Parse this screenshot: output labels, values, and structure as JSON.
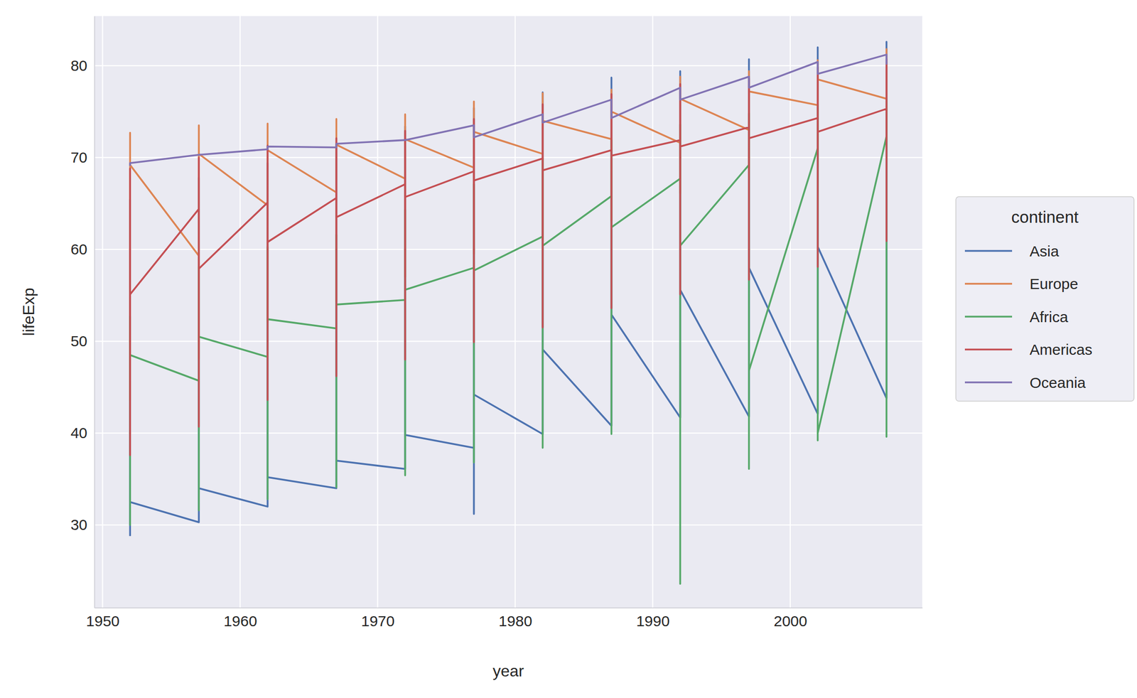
{
  "chart_data": {
    "type": "line",
    "x_label": "year",
    "y_label": "lifeExp",
    "legend_title": "continent",
    "legend": "right",
    "grid": true,
    "x": [
      1952,
      1952,
      1952,
      1952,
      1957,
      1957,
      1957,
      1957,
      1962,
      1962,
      1962,
      1962,
      1967,
      1967,
      1967,
      1967,
      1972,
      1972,
      1972,
      1972,
      1977,
      1977,
      1977,
      1977,
      1982,
      1982,
      1982,
      1982,
      1987,
      1987,
      1987,
      1987,
      1992,
      1992,
      1992,
      1992,
      1997,
      1997,
      1997,
      1997,
      2002,
      2002,
      2002,
      2002,
      2007,
      2007,
      2007,
      2007
    ],
    "xlim": [
      1949.4,
      2009.6
    ],
    "xticks": [
      1950,
      1960,
      1970,
      1980,
      1990,
      2000
    ],
    "ylim": [
      21,
      85.4
    ],
    "yticks": [
      30,
      40,
      50,
      60,
      70,
      80
    ],
    "series": [
      {
        "name": "Asia",
        "color": "#4c72b0",
        "values": [
          28.8,
          28.8,
          65.4,
          32.5,
          30.3,
          30.3,
          67.8,
          34.0,
          32.0,
          32.0,
          69.4,
          35.2,
          34.0,
          34.0,
          71.4,
          37.0,
          36.1,
          36.1,
          73.4,
          39.8,
          38.4,
          31.2,
          75.4,
          44.2,
          39.9,
          39.9,
          77.1,
          49.1,
          40.8,
          40.8,
          78.7,
          52.9,
          41.7,
          41.7,
          79.4,
          55.6,
          41.8,
          41.8,
          80.7,
          58.0,
          42.1,
          42.1,
          82.0,
          60.3,
          43.8,
          43.8,
          82.6,
          62.7
        ]
      },
      {
        "name": "Europe",
        "color": "#dd8452",
        "values": [
          55.2,
          43.6,
          72.7,
          69.2,
          59.3,
          48.1,
          73.5,
          70.4,
          64.8,
          52.1,
          73.7,
          70.8,
          66.2,
          54.3,
          74.2,
          71.4,
          67.7,
          57.0,
          74.7,
          72.0,
          68.9,
          59.5,
          76.1,
          72.8,
          70.4,
          61.0,
          77.0,
          74.0,
          72.0,
          63.1,
          77.4,
          75.0,
          71.6,
          66.1,
          78.8,
          76.4,
          73.0,
          68.8,
          79.4,
          77.2,
          75.7,
          70.8,
          80.6,
          78.5,
          76.4,
          71.8,
          81.8,
          79.4
        ]
      },
      {
        "name": "Africa",
        "color": "#55a868",
        "values": [
          43.1,
          30.0,
          52.7,
          48.5,
          45.7,
          31.6,
          58.1,
          50.5,
          48.3,
          32.8,
          60.3,
          52.4,
          51.4,
          34.1,
          61.6,
          54.0,
          54.5,
          35.4,
          64.3,
          55.6,
          58.0,
          36.8,
          67.1,
          57.7,
          61.4,
          38.4,
          69.9,
          60.4,
          65.8,
          39.9,
          71.9,
          62.4,
          67.7,
          23.6,
          73.6,
          60.4,
          69.2,
          36.1,
          74.8,
          46.8,
          71.0,
          39.2,
          75.7,
          40.0,
          72.3,
          39.6,
          76.4,
          43.5
        ]
      },
      {
        "name": "Americas",
        "color": "#c44e52",
        "values": [
          62.5,
          37.6,
          68.8,
          55.1,
          64.4,
          40.7,
          70.0,
          57.9,
          65.1,
          43.6,
          71.3,
          60.8,
          65.6,
          46.2,
          72.1,
          63.5,
          67.1,
          48.0,
          72.9,
          65.7,
          68.5,
          49.9,
          74.2,
          67.5,
          69.9,
          51.5,
          75.8,
          68.6,
          70.8,
          53.6,
          76.9,
          70.2,
          71.9,
          55.1,
          78.0,
          71.2,
          73.3,
          56.7,
          78.6,
          72.1,
          74.3,
          58.1,
          79.8,
          72.8,
          75.3,
          60.9,
          80.7,
          73.7
        ]
      },
      {
        "name": "Oceania",
        "color": "#8172b3",
        "values": [
          69.1,
          69.1,
          69.4,
          69.4,
          70.3,
          70.3,
          70.3,
          70.3,
          70.9,
          70.9,
          71.2,
          71.2,
          71.1,
          71.1,
          71.5,
          71.5,
          71.9,
          71.9,
          71.9,
          71.9,
          73.5,
          72.2,
          73.5,
          72.2,
          74.7,
          73.8,
          74.7,
          73.8,
          76.3,
          74.3,
          76.3,
          74.3,
          77.6,
          76.3,
          77.6,
          76.3,
          78.8,
          77.6,
          78.8,
          77.6,
          80.4,
          79.1,
          80.4,
          79.1,
          81.2,
          80.2,
          81.2,
          80.2
        ]
      }
    ]
  }
}
